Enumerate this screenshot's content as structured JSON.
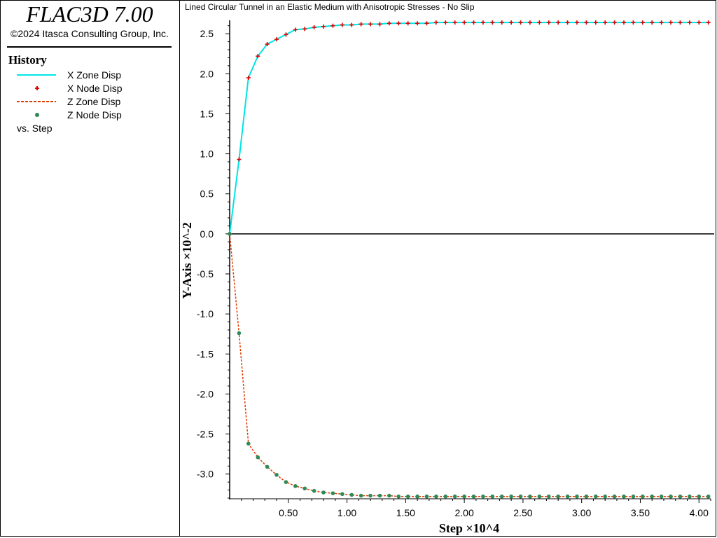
{
  "app": {
    "title": "FLAC3D 7.00",
    "copyright": "©2024 Itasca Consulting Group, Inc."
  },
  "legend": {
    "heading": "History",
    "items": [
      {
        "label": "X Zone Disp",
        "symbol": "solid-line",
        "color": "#00e5e5"
      },
      {
        "label": "X Node Disp",
        "symbol": "plus-marker",
        "color": "#e00000"
      },
      {
        "label": "Z Zone Disp",
        "symbol": "dashed-line",
        "color": "#e03c00"
      },
      {
        "label": "Z Node Disp",
        "symbol": "dot-marker",
        "color": "#2e8b57"
      }
    ],
    "vs_label": "vs. Step"
  },
  "chart_data": {
    "type": "line",
    "title": "Lined Circular Tunnel in an Elastic Medium with Anisotropic Stresses - No Slip",
    "xlabel": "Step ×10^4",
    "ylabel": "Y-Axis ×10^-2",
    "xlim": [
      0,
      4.1
    ],
    "ylim": [
      -3.3,
      2.65
    ],
    "x_ticks": [
      "0.50",
      "1.00",
      "1.50",
      "2.00",
      "2.50",
      "3.00",
      "3.50",
      "4.00"
    ],
    "x_tick_values": [
      0.5,
      1.0,
      1.5,
      2.0,
      2.5,
      3.0,
      3.5,
      4.0
    ],
    "y_ticks": [
      "2.5",
      "2.0",
      "1.5",
      "1.0",
      "0.5",
      "0.0",
      "-0.5",
      "-1.0",
      "-1.5",
      "-2.0",
      "-2.5",
      "-3.0"
    ],
    "y_tick_values": [
      2.5,
      2.0,
      1.5,
      1.0,
      0.5,
      0.0,
      -0.5,
      -1.0,
      -1.5,
      -2.0,
      -2.5,
      -3.0
    ],
    "x": [
      0,
      0.08,
      0.16,
      0.24,
      0.32,
      0.4,
      0.48,
      0.56,
      0.64,
      0.72,
      0.8,
      0.88,
      0.96,
      1.04,
      1.12,
      1.2,
      1.28,
      1.36,
      1.44,
      1.52,
      1.6,
      1.68,
      1.76,
      1.84,
      1.92,
      2.0,
      2.08,
      2.16,
      2.24,
      2.32,
      2.4,
      2.48,
      2.56,
      2.64,
      2.72,
      2.8,
      2.88,
      2.96,
      3.04,
      3.12,
      3.2,
      3.28,
      3.36,
      3.44,
      3.52,
      3.6,
      3.68,
      3.76,
      3.84,
      3.92,
      4.0,
      4.08
    ],
    "series": [
      {
        "name": "X Zone Disp",
        "color": "#00e5e5",
        "style": "solid",
        "values": [
          0,
          0.93,
          1.95,
          2.22,
          2.37,
          2.43,
          2.49,
          2.55,
          2.56,
          2.58,
          2.59,
          2.6,
          2.61,
          2.61,
          2.62,
          2.62,
          2.62,
          2.63,
          2.63,
          2.63,
          2.63,
          2.63,
          2.64,
          2.64,
          2.64,
          2.64,
          2.64,
          2.64,
          2.64,
          2.64,
          2.64,
          2.64,
          2.64,
          2.64,
          2.64,
          2.64,
          2.64,
          2.64,
          2.64,
          2.64,
          2.64,
          2.64,
          2.64,
          2.64,
          2.64,
          2.64,
          2.64,
          2.64,
          2.64,
          2.64,
          2.64,
          2.64
        ]
      },
      {
        "name": "X Node Disp",
        "color": "#e00000",
        "style": "plus",
        "values": [
          0,
          0.93,
          1.95,
          2.22,
          2.37,
          2.43,
          2.49,
          2.55,
          2.56,
          2.58,
          2.59,
          2.6,
          2.61,
          2.61,
          2.62,
          2.62,
          2.62,
          2.63,
          2.63,
          2.63,
          2.63,
          2.63,
          2.64,
          2.64,
          2.64,
          2.64,
          2.64,
          2.64,
          2.64,
          2.64,
          2.64,
          2.64,
          2.64,
          2.64,
          2.64,
          2.64,
          2.64,
          2.64,
          2.64,
          2.64,
          2.64,
          2.64,
          2.64,
          2.64,
          2.64,
          2.64,
          2.64,
          2.64,
          2.64,
          2.64,
          2.64,
          2.64
        ]
      },
      {
        "name": "Z Zone Disp",
        "color": "#e03c00",
        "style": "dashed",
        "values": [
          0,
          -1.24,
          -2.62,
          -2.79,
          -2.91,
          -3.01,
          -3.1,
          -3.15,
          -3.18,
          -3.21,
          -3.23,
          -3.24,
          -3.25,
          -3.26,
          -3.27,
          -3.27,
          -3.27,
          -3.27,
          -3.28,
          -3.28,
          -3.28,
          -3.28,
          -3.28,
          -3.28,
          -3.28,
          -3.28,
          -3.28,
          -3.28,
          -3.28,
          -3.28,
          -3.28,
          -3.28,
          -3.28,
          -3.28,
          -3.28,
          -3.28,
          -3.28,
          -3.28,
          -3.28,
          -3.28,
          -3.28,
          -3.28,
          -3.28,
          -3.28,
          -3.28,
          -3.28,
          -3.28,
          -3.28,
          -3.28,
          -3.28,
          -3.28,
          -3.28
        ]
      },
      {
        "name": "Z Node Disp",
        "color": "#2e8b57",
        "style": "dot",
        "values": [
          0,
          -1.24,
          -2.62,
          -2.79,
          -2.91,
          -3.01,
          -3.1,
          -3.15,
          -3.18,
          -3.21,
          -3.23,
          -3.24,
          -3.25,
          -3.26,
          -3.27,
          -3.27,
          -3.27,
          -3.27,
          -3.28,
          -3.28,
          -3.28,
          -3.28,
          -3.28,
          -3.28,
          -3.28,
          -3.28,
          -3.28,
          -3.28,
          -3.28,
          -3.28,
          -3.28,
          -3.28,
          -3.28,
          -3.28,
          -3.28,
          -3.28,
          -3.28,
          -3.28,
          -3.28,
          -3.28,
          -3.28,
          -3.28,
          -3.28,
          -3.28,
          -3.28,
          -3.28,
          -3.28,
          -3.28,
          -3.28,
          -3.28,
          -3.28,
          -3.28
        ]
      }
    ]
  }
}
